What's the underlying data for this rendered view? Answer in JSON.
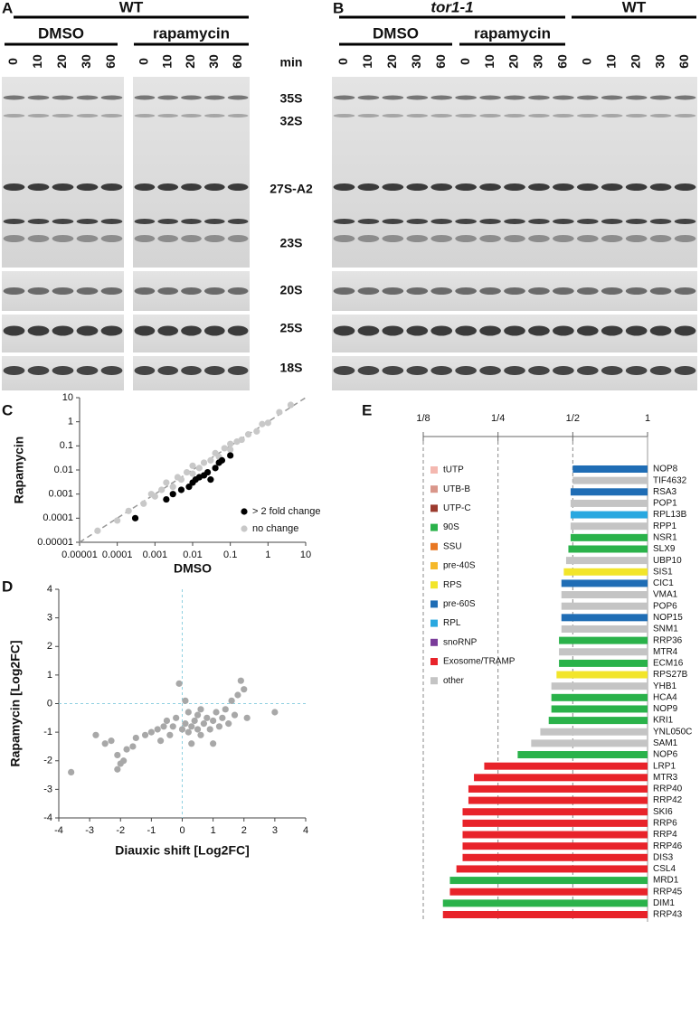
{
  "gels": [
    {
      "letter": "A",
      "strains": [
        "WT"
      ],
      "treatments": [
        "DMSO",
        "rapamycin"
      ],
      "lanes": [
        0,
        10,
        20,
        30,
        60,
        0,
        10,
        20,
        30,
        60
      ],
      "lane_unit": "min",
      "bands": [
        "35S",
        "32S",
        "27S-A2",
        "23S",
        "20S",
        "25S",
        "18S"
      ]
    },
    {
      "letter": "B",
      "strains": [
        "tor1-1",
        "WT"
      ],
      "treatments": [
        "DMSO",
        "rapamycin"
      ],
      "lanes": [
        0,
        10,
        20,
        30,
        60,
        0,
        10,
        20,
        30,
        60,
        0,
        10,
        20,
        30,
        60
      ]
    }
  ],
  "chart_data": [
    {
      "type": "scatter",
      "letter": "C",
      "xlabel": "DMSO",
      "ylabel": "Rapamycin",
      "xscale": "log",
      "yscale": "log",
      "xlim": [
        1e-05,
        10
      ],
      "ylim": [
        1e-05,
        10
      ],
      "xticks": [
        {
          "value": 1e-05,
          "label": "0.00001"
        },
        0.0001,
        0.001,
        0.01,
        0.1,
        1,
        10
      ],
      "yticks": [
        {
          "value": 1e-05,
          "label": "0.00001"
        },
        0.0001,
        0.001,
        0.01,
        0.1,
        1,
        10
      ],
      "diagonal": true,
      "legend": "lower right",
      "series": [
        {
          "name": "> 2 fold change",
          "color": "#000000",
          "x": [
            0.0003,
            0.002,
            0.003,
            0.005,
            0.008,
            0.01,
            0.012,
            0.015,
            0.02,
            0.025,
            0.03,
            0.04,
            0.05,
            0.06,
            0.1
          ],
          "y": [
            0.0001,
            0.0006,
            0.001,
            0.0015,
            0.002,
            0.003,
            0.004,
            0.005,
            0.006,
            0.008,
            0.004,
            0.012,
            0.02,
            0.025,
            0.04
          ]
        },
        {
          "name": "no change",
          "color": "#c8c8c8",
          "x": [
            3e-05,
            0.0001,
            0.0002,
            0.0005,
            0.0008,
            0.001,
            0.0015,
            0.002,
            0.003,
            0.004,
            0.005,
            0.007,
            0.01,
            0.01,
            0.015,
            0.02,
            0.03,
            0.04,
            0.05,
            0.07,
            0.1,
            0.1,
            0.15,
            0.2,
            0.3,
            0.5,
            0.7,
            1,
            2,
            4
          ],
          "y": [
            3e-05,
            8e-05,
            0.0002,
            0.0004,
            0.001,
            0.0008,
            0.0015,
            0.003,
            0.002,
            0.005,
            0.004,
            0.008,
            0.007,
            0.015,
            0.012,
            0.02,
            0.025,
            0.05,
            0.035,
            0.08,
            0.07,
            0.12,
            0.15,
            0.18,
            0.3,
            0.4,
            0.8,
            0.9,
            2.5,
            5
          ]
        }
      ]
    },
    {
      "type": "scatter",
      "letter": "D",
      "xlabel": "Diauxic shift [Log2FC]",
      "ylabel": "Rapamycin [Log2FC]",
      "xlim": [
        -4,
        4
      ],
      "ylim": [
        -4,
        4
      ],
      "xticks": [
        -4,
        -3,
        -2,
        -1,
        0,
        1,
        2,
        3,
        4
      ],
      "yticks": [
        -4,
        -3,
        -2,
        -1,
        0,
        1,
        2,
        3,
        4
      ],
      "zero_lines": true,
      "series": [
        {
          "color": "#a8a8a8",
          "x": [
            -3.6,
            -2.1,
            -2.0,
            -1.9,
            -2.1,
            -1.8,
            -2.5,
            -2.8,
            -2.3,
            -1.6,
            -1.5,
            -1.2,
            -1.0,
            -0.8,
            -0.6,
            -0.5,
            -0.4,
            -0.3,
            -0.2,
            -0.1,
            0.0,
            0.1,
            0.1,
            0.2,
            0.3,
            0.4,
            0.5,
            0.5,
            0.6,
            0.7,
            0.8,
            0.9,
            1.0,
            1.1,
            1.2,
            1.3,
            1.4,
            1.5,
            1.6,
            1.7,
            1.8,
            1.9,
            2.0,
            2.1,
            3.0,
            -0.7,
            0.3,
            1.0,
            0.2,
            0.6
          ],
          "y": [
            -2.4,
            -2.3,
            -2.1,
            -2.0,
            -1.8,
            -1.6,
            -1.4,
            -1.1,
            -1.3,
            -1.5,
            -1.2,
            -1.1,
            -1.0,
            -0.9,
            -0.8,
            -0.6,
            -1.1,
            -0.8,
            -0.5,
            0.7,
            -0.9,
            -0.7,
            0.1,
            -1.0,
            -0.8,
            -0.6,
            -0.9,
            -0.4,
            -1.1,
            -0.7,
            -0.5,
            -0.9,
            -0.6,
            -0.3,
            -0.8,
            -0.5,
            -0.2,
            -0.7,
            0.1,
            -0.4,
            0.3,
            0.8,
            0.5,
            -0.5,
            -0.3,
            -1.3,
            -1.4,
            -1.4,
            -0.3,
            -0.2
          ]
        }
      ]
    },
    {
      "type": "bar",
      "letter": "E",
      "orientation": "horizontal",
      "xscale": "log",
      "grid": true,
      "xlim": [
        0.125,
        1
      ],
      "xticks": [
        {
          "value": 0.125,
          "label": "1/8"
        },
        {
          "value": 0.25,
          "label": "1/4"
        },
        {
          "value": 0.5,
          "label": "1/2"
        },
        1
      ],
      "categories": [
        "NOP8",
        "TIF4632",
        "RSA3",
        "POP1",
        "RPL13B",
        "RPP1",
        "NSR1",
        "SLX9",
        "UBP10",
        "SIS1",
        "CIC1",
        "VMA1",
        "POP6",
        "NOP15",
        "SNM1",
        "RRP36",
        "MTR4",
        "ECM16",
        "RPS27B",
        "YHB1",
        "HCA4",
        "NOP9",
        "KRI1",
        "YNL050C",
        "SAM1",
        "NOP6",
        "LRP1",
        "MTR3",
        "RRP40",
        "RRP42",
        "SKI6",
        "RRP6",
        "RRP4",
        "RRP46",
        "DIS3",
        "CSL4",
        "MRD1",
        "RRP45",
        "DIM1",
        "RRP43"
      ],
      "values": [
        0.5,
        0.5,
        0.49,
        0.49,
        0.49,
        0.49,
        0.49,
        0.48,
        0.47,
        0.46,
        0.45,
        0.45,
        0.45,
        0.45,
        0.45,
        0.44,
        0.44,
        0.44,
        0.43,
        0.41,
        0.41,
        0.41,
        0.4,
        0.37,
        0.34,
        0.3,
        0.22,
        0.2,
        0.19,
        0.19,
        0.18,
        0.18,
        0.18,
        0.18,
        0.18,
        0.17,
        0.16,
        0.16,
        0.15,
        0.15
      ],
      "colors": [
        "#1f6db5",
        "#c4c4c4",
        "#1f6db5",
        "#c4c4c4",
        "#29a8e0",
        "#c4c4c4",
        "#2ab24a",
        "#2ab24a",
        "#c4c4c4",
        "#f2e52a",
        "#1f6db5",
        "#c4c4c4",
        "#c4c4c4",
        "#1f6db5",
        "#c4c4c4",
        "#2ab24a",
        "#c4c4c4",
        "#2ab24a",
        "#f2e52a",
        "#c4c4c4",
        "#2ab24a",
        "#2ab24a",
        "#2ab24a",
        "#c4c4c4",
        "#c4c4c4",
        "#2ab24a",
        "#e8232a",
        "#e8232a",
        "#e8232a",
        "#e8232a",
        "#e8232a",
        "#e8232a",
        "#e8232a",
        "#e8232a",
        "#e8232a",
        "#e8232a",
        "#2ab24a",
        "#e8232a",
        "#2ab24a",
        "#e8232a"
      ],
      "legend": [
        {
          "name": "tUTP",
          "color": "#f4b8b0"
        },
        {
          "name": "UTB-B",
          "color": "#d9968a"
        },
        {
          "name": "UTP-C",
          "color": "#9b3a2e"
        },
        {
          "name": "90S",
          "color": "#2ab24a"
        },
        {
          "name": "SSU",
          "color": "#e87722"
        },
        {
          "name": "pre-40S",
          "color": "#f5b82a"
        },
        {
          "name": "RPS",
          "color": "#f2e52a"
        },
        {
          "name": "pre-60S",
          "color": "#1f6db5"
        },
        {
          "name": "RPL",
          "color": "#29a8e0"
        },
        {
          "name": "snoRNP",
          "color": "#7a3c9a"
        },
        {
          "name": "Exosome/TRAMP",
          "color": "#e8232a"
        },
        {
          "name": "other",
          "color": "#c4c4c4"
        }
      ]
    }
  ]
}
